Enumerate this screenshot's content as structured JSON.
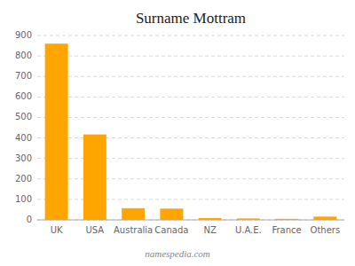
{
  "chart_data": {
    "type": "bar",
    "title": "Surname Mottram",
    "categories": [
      "UK",
      "USA",
      "Australia",
      "Canada",
      "NZ",
      "U.A.E.",
      "France",
      "Others"
    ],
    "values": [
      860,
      417,
      57,
      55,
      9,
      7,
      5,
      16
    ],
    "color": "#FFA500",
    "ylim": [
      0,
      900
    ],
    "yticks": [
      0,
      100,
      200,
      300,
      400,
      500,
      600,
      700,
      800,
      900
    ],
    "grid": true,
    "annotations": [
      "namespedia.com"
    ]
  }
}
